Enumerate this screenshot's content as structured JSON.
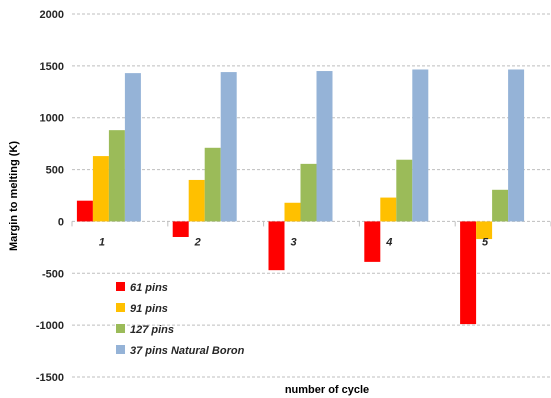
{
  "chart_data": {
    "type": "bar",
    "title": "",
    "xlabel": "number of cycle",
    "ylabel": "Margin to melting (K)",
    "categories": [
      "1",
      "2",
      "3",
      "4",
      "5"
    ],
    "ylim": [
      -1500,
      2000
    ],
    "yticks": [
      -1500,
      -1000,
      -500,
      0,
      500,
      1000,
      1500,
      2000
    ],
    "grid": true,
    "legend_position": "bottom-left",
    "series": [
      {
        "name": "61 pins",
        "color": "#ff0000",
        "values": [
          200,
          -150,
          -470,
          -390,
          -990
        ]
      },
      {
        "name": "91 pins",
        "color": "#ffc000",
        "values": [
          630,
          400,
          180,
          230,
          -170
        ]
      },
      {
        "name": "127 pins",
        "color": "#9bbb59",
        "values": [
          880,
          710,
          555,
          595,
          305
        ]
      },
      {
        "name": "37 pins Natural Boron",
        "color": "#95b3d7",
        "values": [
          1430,
          1440,
          1450,
          1465,
          1465
        ]
      }
    ]
  }
}
